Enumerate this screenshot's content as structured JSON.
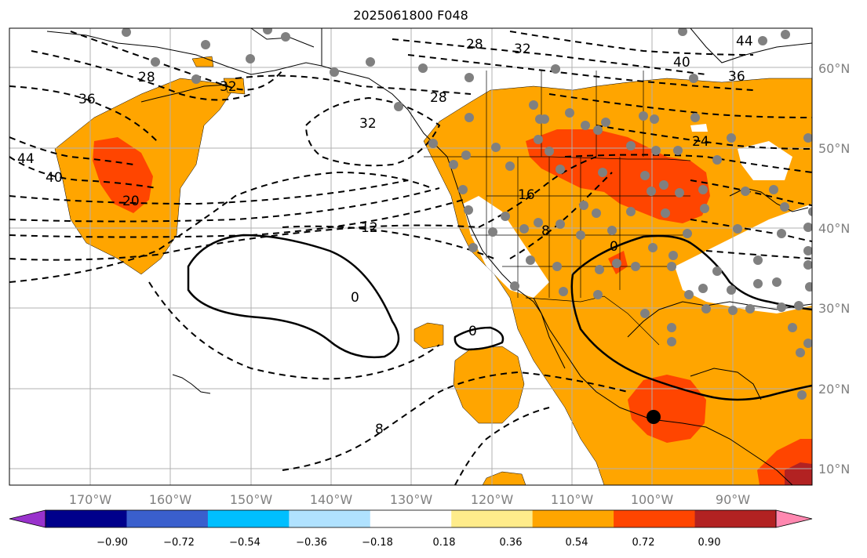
{
  "title": "2025061800 F048",
  "latitude_labels": [
    "60°N",
    "50°N",
    "40°N",
    "30°N",
    "20°N",
    "10°N"
  ],
  "longitude_labels": [
    "170°W",
    "160°W",
    "150°W",
    "140°W",
    "130°W",
    "120°W",
    "110°W",
    "100°W",
    "90°W"
  ],
  "colorbar": {
    "tick_labels": [
      "−0.90",
      "−0.72",
      "−0.54",
      "−0.36",
      "−0.18",
      "0.18",
      "0.36",
      "0.54",
      "0.72",
      "0.90"
    ],
    "colors": [
      "#9932cc",
      "#00008b",
      "#3a5fcd",
      "#00bfff",
      "#b0e2ff",
      "#ffffff",
      "#ffec8b",
      "#ffa500",
      "#ff4500",
      "#b22222",
      "#ff88b0"
    ]
  },
  "contour_labels": [
    "28",
    "32",
    "44",
    "40",
    "36",
    "28",
    "32",
    "36",
    "44",
    "40",
    "32",
    "28",
    "20",
    "12",
    "16",
    "8",
    "0",
    "0",
    "0",
    "24",
    "8"
  ],
  "fill_colors": {
    "orange": "#ffa500",
    "red": "#ff4500",
    "darkred": "#b22222",
    "land_outline": "#000000",
    "grid": "#b0b0b0",
    "station": "#808080"
  }
}
